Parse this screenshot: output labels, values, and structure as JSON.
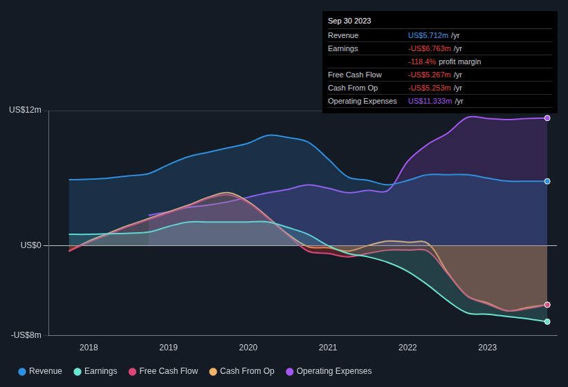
{
  "chart_data": {
    "type": "line",
    "x": [
      2017.75,
      2018,
      2018.25,
      2018.5,
      2018.75,
      2019,
      2019.25,
      2019.5,
      2019.75,
      2020,
      2020.25,
      2020.5,
      2020.75,
      2021,
      2021.25,
      2021.5,
      2021.75,
      2022,
      2022.25,
      2022.5,
      2022.75,
      2023,
      2023.25,
      2023.5,
      2023.75
    ],
    "xlim": [
      2017.5,
      2023.87
    ],
    "xticks": [
      2018,
      2019,
      2020,
      2021,
      2022,
      2023
    ],
    "ylim": [
      -8,
      12
    ],
    "yticks": [
      {
        "value": -8,
        "label": "-US$8m"
      },
      {
        "value": 0,
        "label": "US$0"
      },
      {
        "value": 12,
        "label": "US$12m"
      }
    ],
    "grid": true,
    "legend": "bottom-left",
    "series": [
      {
        "name": "Revenue",
        "color": "#2f8fe0",
        "values": [
          5.85,
          5.9,
          6.0,
          6.2,
          6.4,
          7.2,
          7.9,
          8.3,
          8.7,
          9.1,
          9.8,
          9.6,
          9.2,
          7.7,
          6.1,
          5.8,
          5.4,
          5.8,
          6.3,
          6.3,
          6.3,
          6.0,
          5.73,
          5.72,
          5.712
        ]
      },
      {
        "name": "Earnings",
        "color": "#6ce5d0",
        "values": [
          1.0,
          1.0,
          1.05,
          1.1,
          1.2,
          1.7,
          2.1,
          2.1,
          2.1,
          2.1,
          2.1,
          1.6,
          1.0,
          0.0,
          -0.7,
          -1.0,
          -1.5,
          -2.3,
          -3.5,
          -4.9,
          -6.0,
          -6.1,
          -6.3,
          -6.5,
          -6.763
        ]
      },
      {
        "name": "Free Cash Flow",
        "color": "#d9467a",
        "values": [
          -0.5,
          0.3,
          1.0,
          1.7,
          2.3,
          2.9,
          3.5,
          4.2,
          4.5,
          3.8,
          2.4,
          0.9,
          -0.5,
          -0.7,
          -1.0,
          -0.7,
          -0.4,
          -0.4,
          -0.5,
          -2.5,
          -4.5,
          -5.2,
          -5.8,
          -5.6,
          -5.267
        ]
      },
      {
        "name": "Cash From Op",
        "color": "#f2b36b",
        "values": [
          -0.5,
          0.4,
          1.1,
          1.8,
          2.4,
          3.0,
          3.6,
          4.3,
          4.7,
          3.9,
          2.5,
          1.0,
          -0.1,
          -0.2,
          -0.5,
          0.0,
          0.4,
          0.3,
          0.2,
          -2.4,
          -4.5,
          -5.1,
          -5.8,
          -5.5,
          -5.253
        ]
      },
      {
        "name": "Operating Expenses",
        "color": "#a456ee",
        "values": [
          null,
          null,
          null,
          null,
          2.7,
          3.0,
          3.4,
          3.6,
          3.9,
          4.3,
          4.7,
          5.0,
          5.4,
          5.1,
          4.7,
          4.9,
          4.9,
          7.5,
          9.0,
          10.0,
          11.4,
          11.3,
          11.2,
          11.3,
          11.333
        ]
      }
    ],
    "info_box": {
      "title": "Sep 30 2023",
      "rows": [
        {
          "label": "Revenue",
          "value": "US$5.712m",
          "unit": "/yr",
          "color": "#3d9be9"
        },
        {
          "label": "Earnings",
          "value": "-US$6.763m",
          "unit": "/yr",
          "color": "#e2453f"
        },
        {
          "value": "-118.4%",
          "unit": "profit margin",
          "color": "#e2453f"
        },
        {
          "label": "Free Cash Flow",
          "value": "-US$5.267m",
          "unit": "/yr",
          "color": "#e2453f"
        },
        {
          "label": "Cash From Op",
          "value": "-US$5.253m",
          "unit": "/yr",
          "color": "#e2453f"
        },
        {
          "label": "Operating Expenses",
          "value": "US$11.333m",
          "unit": "/yr",
          "color": "#a456ee"
        }
      ]
    }
  }
}
